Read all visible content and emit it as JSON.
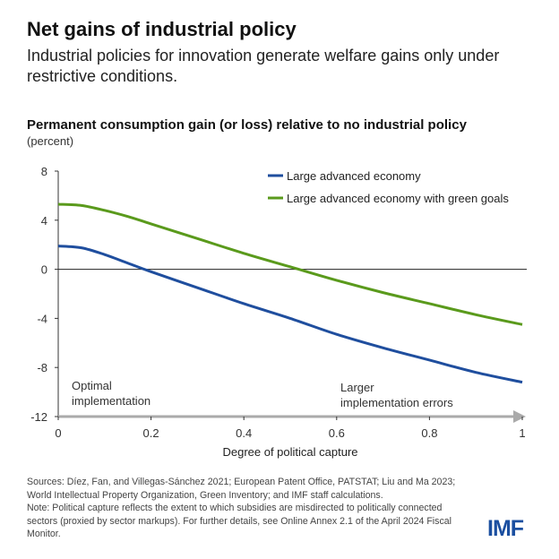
{
  "header": {
    "title": "Net gains of industrial policy",
    "subtitle": "Industrial policies for innovation generate welfare gains only under restrictive conditions."
  },
  "chart_data": {
    "type": "line",
    "title": "Permanent consumption gain (or loss) relative to no industrial policy",
    "ylabel": "(percent)",
    "xlabel": "Degree of political capture",
    "xlim": [
      0,
      1
    ],
    "ylim": [
      -12,
      8
    ],
    "xticks": [
      "0",
      "0.2",
      "0.4",
      "0.6",
      "0.8",
      "1"
    ],
    "yticks": [
      "8",
      "4",
      "0",
      "-4",
      "-8",
      "-12"
    ],
    "legend_position": "top-right",
    "grid": false,
    "x": [
      0,
      0.05,
      0.1,
      0.15,
      0.2,
      0.3,
      0.4,
      0.5,
      0.6,
      0.7,
      0.8,
      0.9,
      1
    ],
    "series": [
      {
        "name": "Large advanced economy",
        "color": "#1f4e9e",
        "values": [
          1.9,
          1.75,
          1.2,
          0.5,
          -0.2,
          -1.5,
          -2.8,
          -4.0,
          -5.3,
          -6.4,
          -7.4,
          -8.4,
          -9.2
        ]
      },
      {
        "name": "Large advanced economy with green goals",
        "color": "#5a9a1c",
        "values": [
          5.3,
          5.2,
          4.8,
          4.3,
          3.7,
          2.5,
          1.3,
          0.2,
          -0.9,
          -1.9,
          -2.8,
          -3.7,
          -4.5
        ]
      }
    ],
    "annotations": {
      "left": [
        "Optimal",
        "implementation"
      ],
      "right": [
        "Larger",
        "implementation errors"
      ]
    }
  },
  "footer": {
    "sources": "Sources: Díez, Fan, and Villegas-Sánchez 2021; European Patent Office, PATSTAT; Liu and Ma 2023; World Intellectual Property Organization, Green Inventory; and IMF staff calculations.",
    "note": "Note: Political capture reflects the extent to which subsidies are misdirected to politically connected sectors (proxied by sector markups). For further details, see Online Annex 2.1 of the April 2024 Fiscal Monitor.",
    "logo": "IMF"
  }
}
